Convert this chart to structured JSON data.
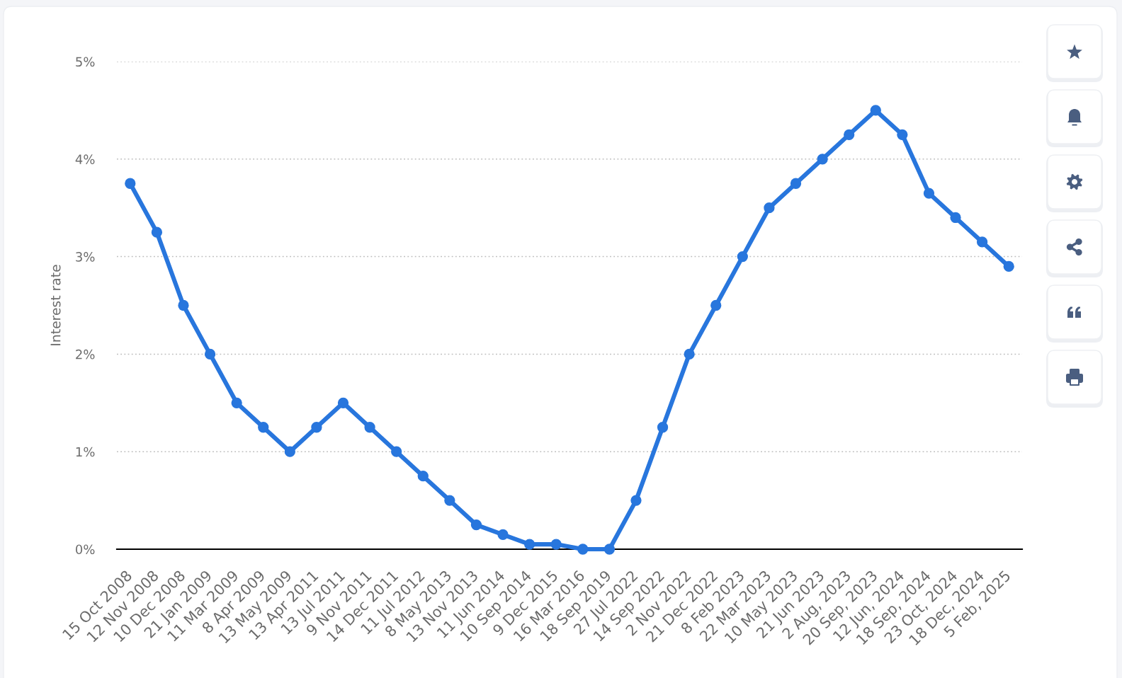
{
  "chart_data": {
    "type": "line",
    "ylabel": "Interest rate",
    "categories": [
      "15 Oct 2008",
      "12 Nov 2008",
      "10 Dec 2008",
      "21 Jan 2009",
      "11 Mar 2009",
      "8 Apr 2009",
      "13 May 2009",
      "13 Apr 2011",
      "13 Jul 2011",
      "9 Nov 2011",
      "14 Dec 2011",
      "11 Jul 2012",
      "8 May 2013",
      "13 Nov 2013",
      "11 Jun 2014",
      "10 Sep 2014",
      "9 Dec 2015",
      "16 Mar 2016",
      "18 Sep 2019",
      "27 Jul 2022",
      "14 Sep 2022",
      "2 Nov 2022",
      "21 Dec 2022",
      "8 Feb 2023",
      "22 Mar 2023",
      "10 May 2023",
      "21 Jun 2023",
      "2 Aug, 2023",
      "20 Sep, 2023",
      "12 Jun, 2024",
      "18 Sep, 2024",
      "23 Oct, 2024",
      "18 Dec, 2024",
      "5 Feb, 2025"
    ],
    "series": [
      {
        "color": "#2876dd",
        "values": [
          3.75,
          3.25,
          2.5,
          2,
          1.5,
          1.25,
          1,
          1.25,
          1.5,
          1.25,
          1,
          0.75,
          0.5,
          0.25,
          0.15,
          0.05,
          0.05,
          0,
          0,
          0.5,
          1.25,
          2,
          2.5,
          3,
          3.5,
          3.75,
          4,
          4.25,
          4.5,
          4.25,
          3.65,
          3.4,
          3.15,
          2.9
        ]
      }
    ],
    "ylim": [
      0,
      5
    ],
    "yticks": [
      {
        "value": 0,
        "label": "0%"
      },
      {
        "value": 1,
        "label": "1%"
      },
      {
        "value": 2,
        "label": "2%"
      },
      {
        "value": 3,
        "label": "3%"
      },
      {
        "value": 4,
        "label": "4%"
      },
      {
        "value": 5,
        "label": "5%"
      }
    ],
    "grid": "y",
    "marker": "circle",
    "line_style": "solid"
  }
}
